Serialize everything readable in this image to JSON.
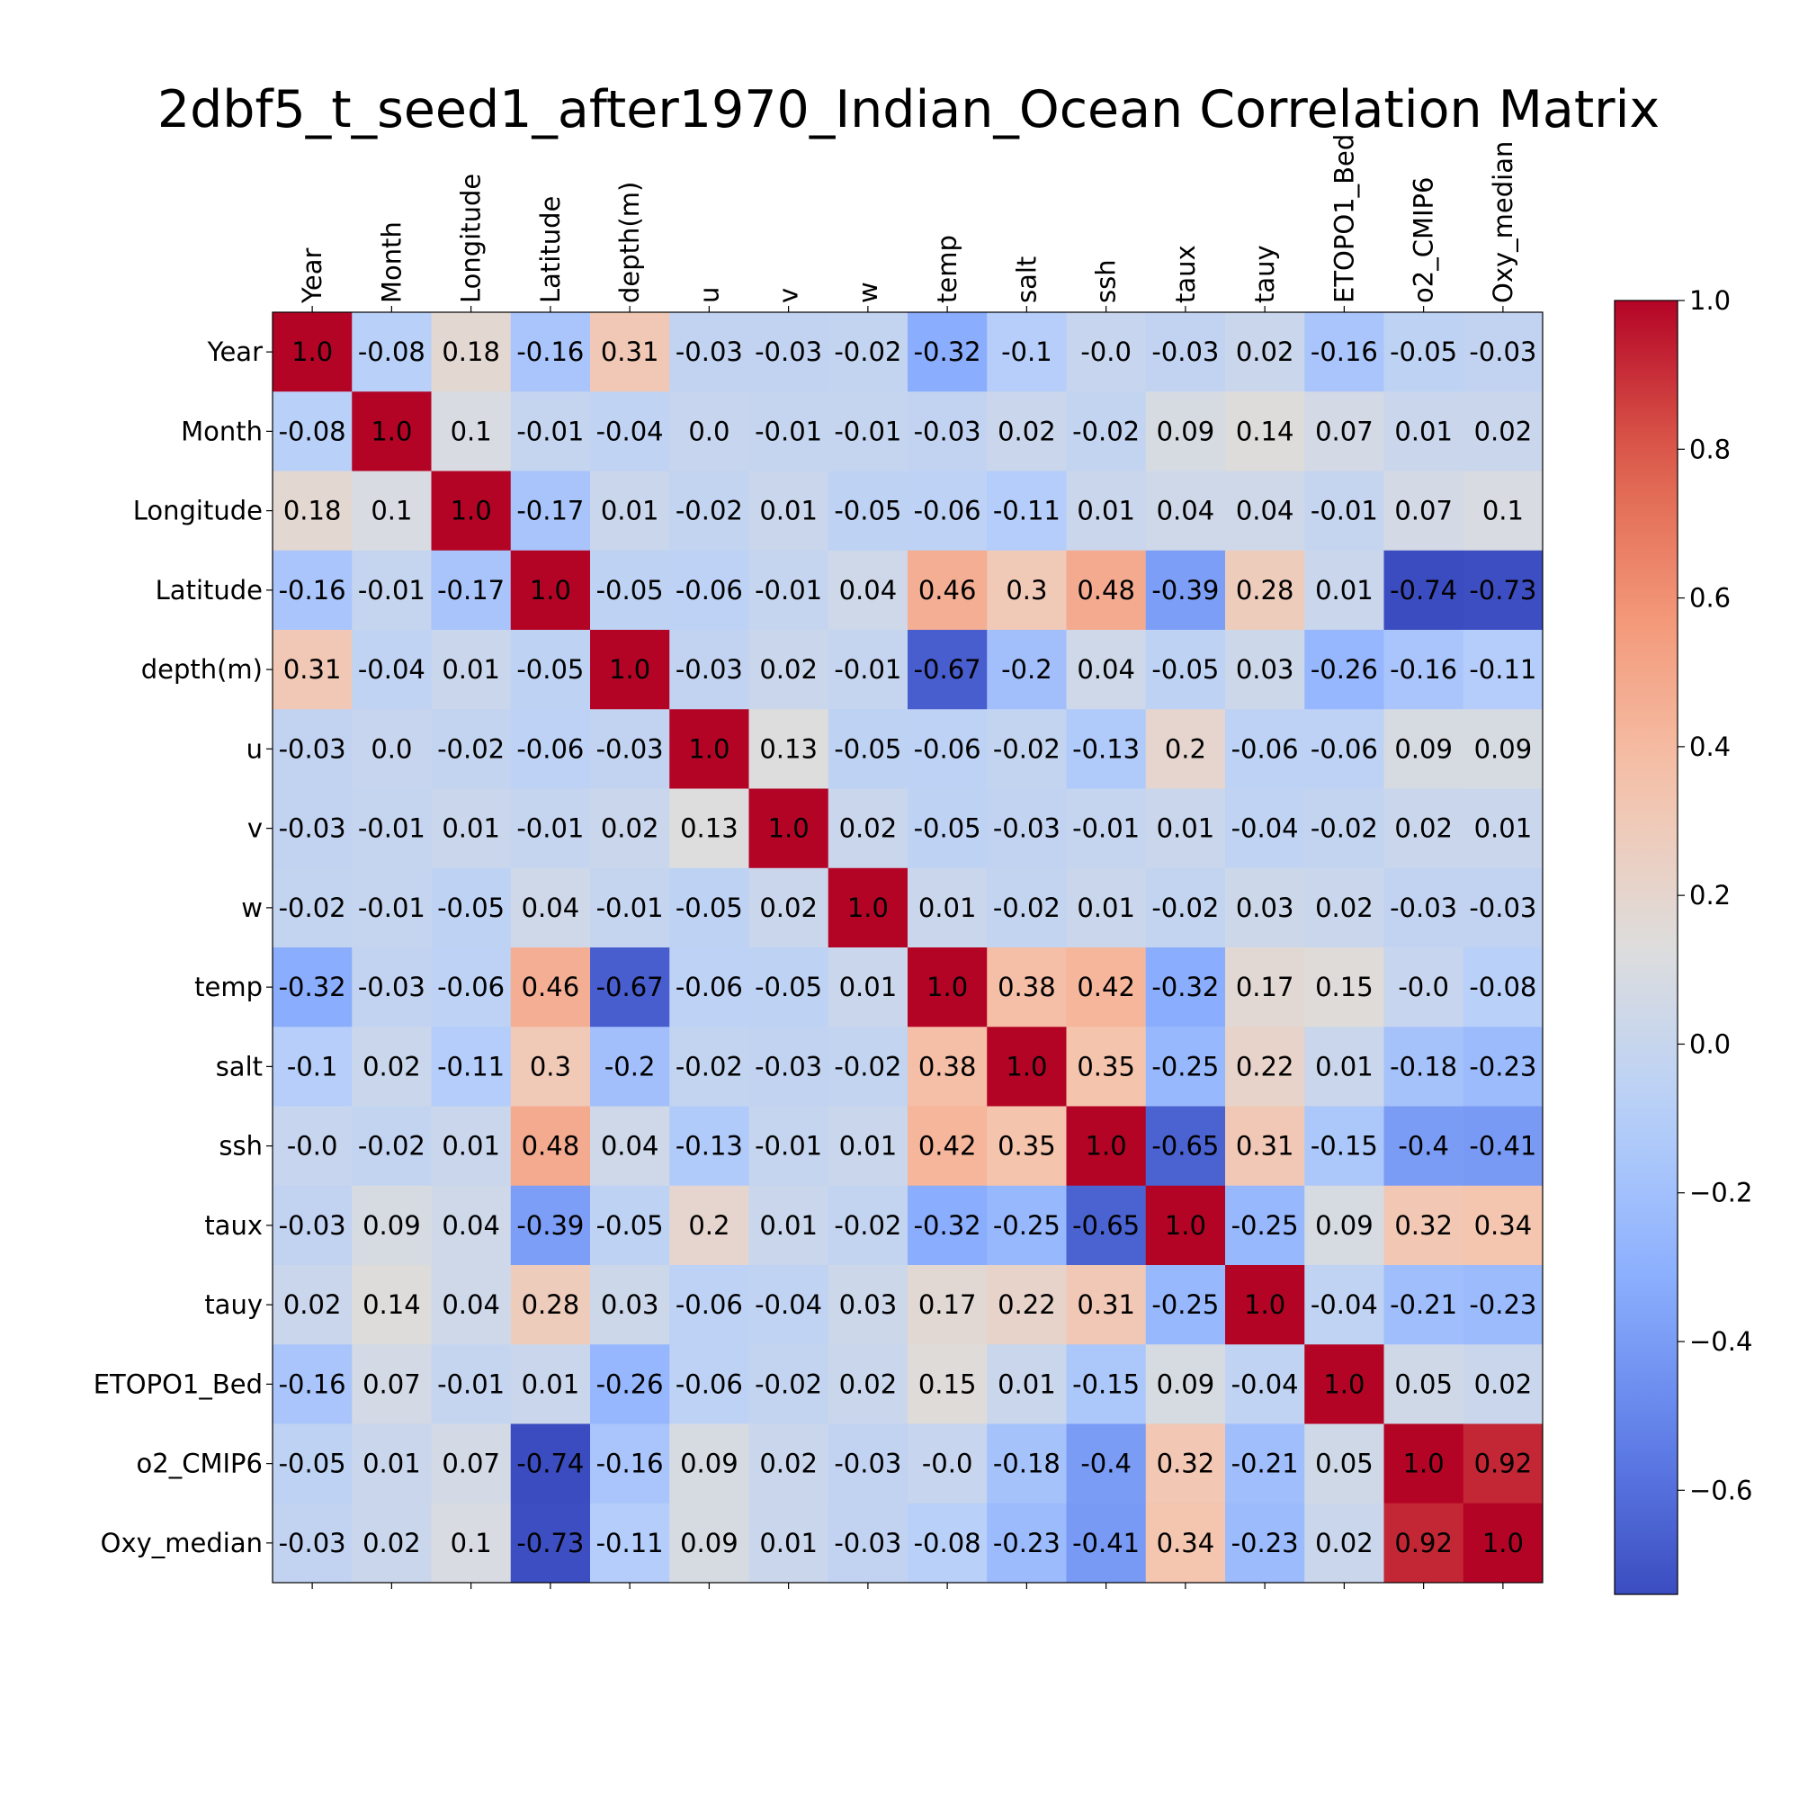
{
  "chart_data": {
    "type": "heatmap",
    "title": "2dbf5_t_seed1_after1970_Indian_Ocean Correlation Matrix",
    "colormap": "coolwarm",
    "vmin": -0.74,
    "vmax": 1.0,
    "labels": [
      "Year",
      "Month",
      "Longitude",
      "Latitude",
      "depth(m)",
      "u",
      "v",
      "w",
      "temp",
      "salt",
      "ssh",
      "taux",
      "tauy",
      "ETOPO1_Bed",
      "o2_CMIP6",
      "Oxy_median"
    ],
    "matrix": [
      [
        1.0,
        -0.08,
        0.18,
        -0.16,
        0.31,
        -0.03,
        -0.03,
        -0.02,
        -0.32,
        -0.1,
        -0.0,
        -0.03,
        0.02,
        -0.16,
        -0.05,
        -0.03
      ],
      [
        -0.08,
        1.0,
        0.1,
        -0.01,
        -0.04,
        0.0,
        -0.01,
        -0.01,
        -0.03,
        0.02,
        -0.02,
        0.09,
        0.14,
        0.07,
        0.01,
        0.02
      ],
      [
        0.18,
        0.1,
        1.0,
        -0.17,
        0.01,
        -0.02,
        0.01,
        -0.05,
        -0.06,
        -0.11,
        0.01,
        0.04,
        0.04,
        -0.01,
        0.07,
        0.1
      ],
      [
        -0.16,
        -0.01,
        -0.17,
        1.0,
        -0.05,
        -0.06,
        -0.01,
        0.04,
        0.46,
        0.3,
        0.48,
        -0.39,
        0.28,
        0.01,
        -0.74,
        -0.73
      ],
      [
        0.31,
        -0.04,
        0.01,
        -0.05,
        1.0,
        -0.03,
        0.02,
        -0.01,
        -0.67,
        -0.2,
        0.04,
        -0.05,
        0.03,
        -0.26,
        -0.16,
        -0.11
      ],
      [
        -0.03,
        0.0,
        -0.02,
        -0.06,
        -0.03,
        1.0,
        0.13,
        -0.05,
        -0.06,
        -0.02,
        -0.13,
        0.2,
        -0.06,
        -0.06,
        0.09,
        0.09
      ],
      [
        -0.03,
        -0.01,
        0.01,
        -0.01,
        0.02,
        0.13,
        1.0,
        0.02,
        -0.05,
        -0.03,
        -0.01,
        0.01,
        -0.04,
        -0.02,
        0.02,
        0.01
      ],
      [
        -0.02,
        -0.01,
        -0.05,
        0.04,
        -0.01,
        -0.05,
        0.02,
        1.0,
        0.01,
        -0.02,
        0.01,
        -0.02,
        0.03,
        0.02,
        -0.03,
        -0.03
      ],
      [
        -0.32,
        -0.03,
        -0.06,
        0.46,
        -0.67,
        -0.06,
        -0.05,
        0.01,
        1.0,
        0.38,
        0.42,
        -0.32,
        0.17,
        0.15,
        -0.0,
        -0.08
      ],
      [
        -0.1,
        0.02,
        -0.11,
        0.3,
        -0.2,
        -0.02,
        -0.03,
        -0.02,
        0.38,
        1.0,
        0.35,
        -0.25,
        0.22,
        0.01,
        -0.18,
        -0.23
      ],
      [
        -0.0,
        -0.02,
        0.01,
        0.48,
        0.04,
        -0.13,
        -0.01,
        0.01,
        0.42,
        0.35,
        1.0,
        -0.65,
        0.31,
        -0.15,
        -0.4,
        -0.41
      ],
      [
        -0.03,
        0.09,
        0.04,
        -0.39,
        -0.05,
        0.2,
        0.01,
        -0.02,
        -0.32,
        -0.25,
        -0.65,
        1.0,
        -0.25,
        0.09,
        0.32,
        0.34
      ],
      [
        0.02,
        0.14,
        0.04,
        0.28,
        0.03,
        -0.06,
        -0.04,
        0.03,
        0.17,
        0.22,
        0.31,
        -0.25,
        1.0,
        -0.04,
        -0.21,
        -0.23
      ],
      [
        -0.16,
        0.07,
        -0.01,
        0.01,
        -0.26,
        -0.06,
        -0.02,
        0.02,
        0.15,
        0.01,
        -0.15,
        0.09,
        -0.04,
        1.0,
        0.05,
        0.02
      ],
      [
        -0.05,
        0.01,
        0.07,
        -0.74,
        -0.16,
        0.09,
        0.02,
        -0.03,
        -0.0,
        -0.18,
        -0.4,
        0.32,
        -0.21,
        0.05,
        1.0,
        0.92
      ],
      [
        -0.03,
        0.02,
        0.1,
        -0.73,
        -0.11,
        0.09,
        0.01,
        -0.03,
        -0.08,
        -0.23,
        -0.41,
        0.34,
        -0.23,
        0.02,
        0.92,
        1.0
      ]
    ],
    "cell_labels": [
      [
        "1.0",
        "-0.08",
        "0.18",
        "-0.16",
        "0.31",
        "-0.03",
        "-0.03",
        "-0.02",
        "-0.32",
        "-0.1",
        "-0.0",
        "-0.03",
        "0.02",
        "-0.16",
        "-0.05",
        "-0.03"
      ],
      [
        "-0.08",
        "1.0",
        "0.1",
        "-0.01",
        "-0.04",
        "0.0",
        "-0.01",
        "-0.01",
        "-0.03",
        "0.02",
        "-0.02",
        "0.09",
        "0.14",
        "0.07",
        "0.01",
        "0.02"
      ],
      [
        "0.18",
        "0.1",
        "1.0",
        "-0.17",
        "0.01",
        "-0.02",
        "0.01",
        "-0.05",
        "-0.06",
        "-0.11",
        "0.01",
        "0.04",
        "0.04",
        "-0.01",
        "0.07",
        "0.1"
      ],
      [
        "-0.16",
        "-0.01",
        "-0.17",
        "1.0",
        "-0.05",
        "-0.06",
        "-0.01",
        "0.04",
        "0.46",
        "0.3",
        "0.48",
        "-0.39",
        "0.28",
        "0.01",
        "-0.74",
        "-0.73"
      ],
      [
        "0.31",
        "-0.04",
        "0.01",
        "-0.05",
        "1.0",
        "-0.03",
        "0.02",
        "-0.01",
        "-0.67",
        "-0.2",
        "0.04",
        "-0.05",
        "0.03",
        "-0.26",
        "-0.16",
        "-0.11"
      ],
      [
        "-0.03",
        "0.0",
        "-0.02",
        "-0.06",
        "-0.03",
        "1.0",
        "0.13",
        "-0.05",
        "-0.06",
        "-0.02",
        "-0.13",
        "0.2",
        "-0.06",
        "-0.06",
        "0.09",
        "0.09"
      ],
      [
        "-0.03",
        "-0.01",
        "0.01",
        "-0.01",
        "0.02",
        "0.13",
        "1.0",
        "0.02",
        "-0.05",
        "-0.03",
        "-0.01",
        "0.01",
        "-0.04",
        "-0.02",
        "0.02",
        "0.01"
      ],
      [
        "-0.02",
        "-0.01",
        "-0.05",
        "0.04",
        "-0.01",
        "-0.05",
        "0.02",
        "1.0",
        "0.01",
        "-0.02",
        "0.01",
        "-0.02",
        "0.03",
        "0.02",
        "-0.03",
        "-0.03"
      ],
      [
        "-0.32",
        "-0.03",
        "-0.06",
        "0.46",
        "-0.67",
        "-0.06",
        "-0.05",
        "0.01",
        "1.0",
        "0.38",
        "0.42",
        "-0.32",
        "0.17",
        "0.15",
        "-0.0",
        "-0.08"
      ],
      [
        "-0.1",
        "0.02",
        "-0.11",
        "0.3",
        "-0.2",
        "-0.02",
        "-0.03",
        "-0.02",
        "0.38",
        "1.0",
        "0.35",
        "-0.25",
        "0.22",
        "0.01",
        "-0.18",
        "-0.23"
      ],
      [
        "-0.0",
        "-0.02",
        "0.01",
        "0.48",
        "0.04",
        "-0.13",
        "-0.01",
        "0.01",
        "0.42",
        "0.35",
        "1.0",
        "-0.65",
        "0.31",
        "-0.15",
        "-0.4",
        "-0.41"
      ],
      [
        "-0.03",
        "0.09",
        "0.04",
        "-0.39",
        "-0.05",
        "0.2",
        "0.01",
        "-0.02",
        "-0.32",
        "-0.25",
        "-0.65",
        "1.0",
        "-0.25",
        "0.09",
        "0.32",
        "0.34"
      ],
      [
        "0.02",
        "0.14",
        "0.04",
        "0.28",
        "0.03",
        "-0.06",
        "-0.04",
        "0.03",
        "0.17",
        "0.22",
        "0.31",
        "-0.25",
        "1.0",
        "-0.04",
        "-0.21",
        "-0.23"
      ],
      [
        "-0.16",
        "0.07",
        "-0.01",
        "0.01",
        "-0.26",
        "-0.06",
        "-0.02",
        "0.02",
        "0.15",
        "0.01",
        "-0.15",
        "0.09",
        "-0.04",
        "1.0",
        "0.05",
        "0.02"
      ],
      [
        "-0.05",
        "0.01",
        "0.07",
        "-0.74",
        "-0.16",
        "0.09",
        "0.02",
        "-0.03",
        "-0.0",
        "-0.18",
        "-0.4",
        "0.32",
        "-0.21",
        "0.05",
        "1.0",
        "0.92"
      ],
      [
        "-0.03",
        "0.02",
        "0.1",
        "-0.73",
        "-0.11",
        "0.09",
        "0.01",
        "-0.03",
        "-0.08",
        "-0.23",
        "-0.41",
        "0.34",
        "-0.23",
        "0.02",
        "0.92",
        "1.0"
      ]
    ],
    "colorbar": {
      "ticks": [
        -0.6,
        -0.4,
        -0.2,
        0.0,
        0.2,
        0.4,
        0.6,
        0.8,
        1.0
      ],
      "tick_labels": [
        "−0.6",
        "−0.4",
        "−0.2",
        "0.0",
        "0.2",
        "0.4",
        "0.6",
        "0.8",
        "1.0"
      ]
    },
    "xlabel": "",
    "ylabel": "",
    "grid": false,
    "x_tick_position": "top"
  }
}
